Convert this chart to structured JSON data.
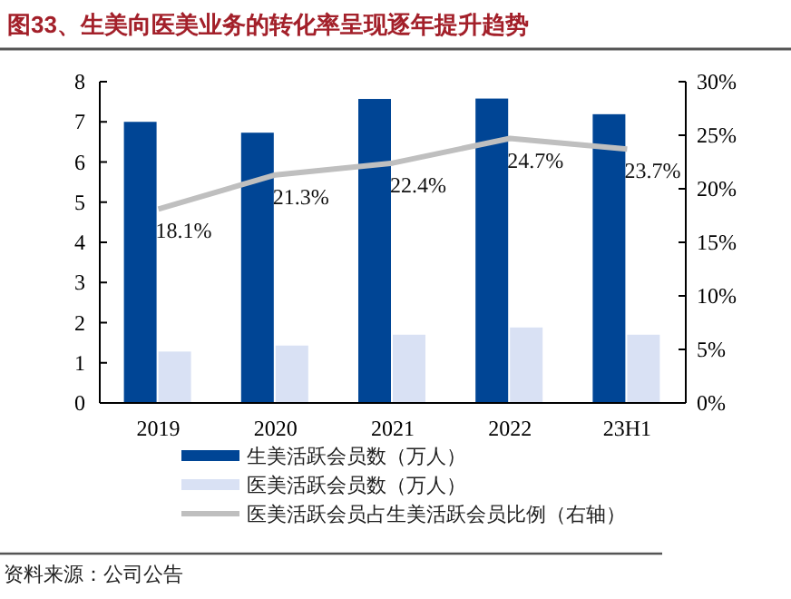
{
  "chart_data": {
    "type": "bar",
    "title": "图33、生美向医美业务的转化率呈现逐年提升趋势",
    "categories": [
      "2019",
      "2020",
      "2021",
      "2022",
      "23H1"
    ],
    "series": [
      {
        "name": "生美活跃会员数（万人）",
        "color": "#004595",
        "values": [
          7.0,
          6.73,
          7.57,
          7.58,
          7.19
        ]
      },
      {
        "name": "医美活跃会员数（万人）",
        "color": "#d9e1f4",
        "values": [
          1.28,
          1.43,
          1.7,
          1.88,
          1.7
        ]
      },
      {
        "name": "医美活跃会员占生美活跃会员比例（右轴）",
        "type": "line",
        "axis": "y2",
        "color": "#bfbfbf",
        "values": [
          18.1,
          21.3,
          22.4,
          24.7,
          23.7
        ],
        "value_labels": [
          "18.1%",
          "21.3%",
          "22.4%",
          "24.7%",
          "23.7%"
        ]
      }
    ],
    "ylim": [
      0,
      8
    ],
    "yticks": [
      0,
      1,
      2,
      3,
      4,
      5,
      6,
      7,
      8
    ],
    "y2lim": [
      0,
      30
    ],
    "y2ticks": [
      {
        "value": 0,
        "label": "0%"
      },
      {
        "value": 5,
        "label": "5%"
      },
      {
        "value": 10,
        "label": "10%"
      },
      {
        "value": 15,
        "label": "15%"
      },
      {
        "value": 20,
        "label": "20%"
      },
      {
        "value": 25,
        "label": "25%"
      },
      {
        "value": 30,
        "label": "30%"
      }
    ],
    "grid": false,
    "legend": "bottom",
    "annotations": [
      "资料来源：公司公告"
    ]
  }
}
